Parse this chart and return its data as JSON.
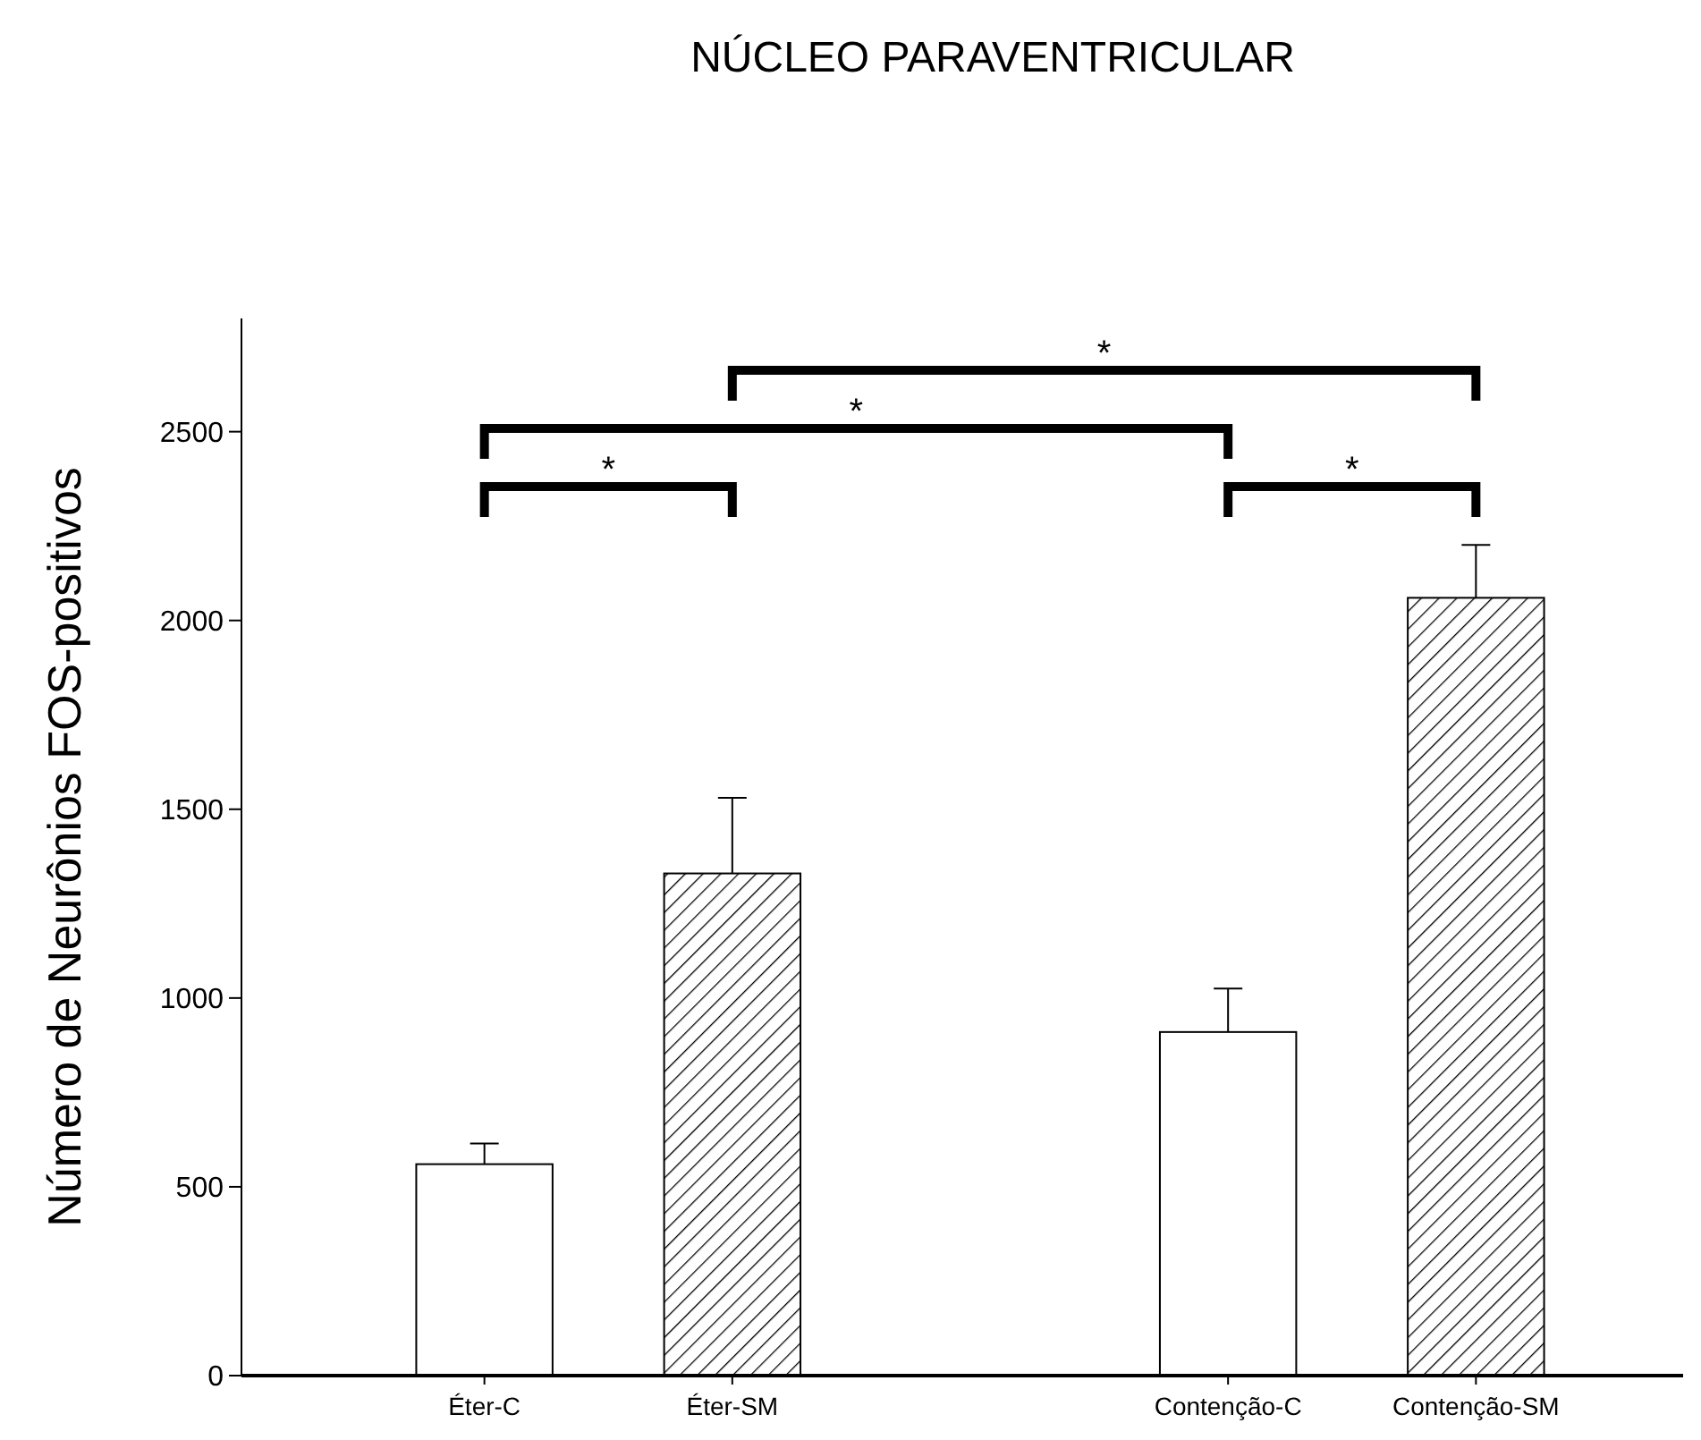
{
  "chart_data": {
    "type": "bar",
    "title": "NÚCLEO PARAVENTRICULAR",
    "ylabel": "Número de Neurônios FOS-positivos",
    "categories": [
      "Éter-C",
      "Éter-SM",
      null,
      "Contenção-C",
      "Contenção-SM"
    ],
    "values": [
      560,
      1330,
      null,
      910,
      2060
    ],
    "errors": [
      55,
      200,
      null,
      115,
      140
    ],
    "colors": [
      "#ffffff",
      "#000000",
      null,
      "#ffffff",
      "#000000"
    ],
    "ylim": [
      0,
      2800
    ],
    "yticks": [
      0,
      500,
      1000,
      1500,
      2000,
      2500
    ],
    "annotations": [
      "*",
      "*",
      "*",
      "*"
    ]
  }
}
